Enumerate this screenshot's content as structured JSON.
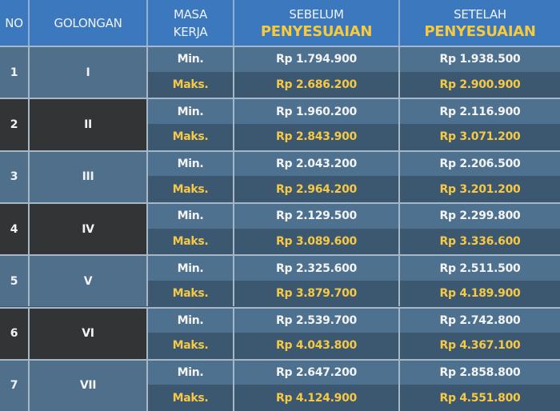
{
  "header": {
    "no": "NO",
    "golongan": "GOLONGAN",
    "masa_kerja": [
      "MASA",
      "KERJA"
    ],
    "sebelum": [
      "SEBELUM",
      "PENYESUAIAN"
    ],
    "setelah": [
      "SETELAH",
      "PENYESUAIAN"
    ]
  },
  "labels": {
    "min": "Min.",
    "maks": "Maks."
  },
  "colors": {
    "header": "#3b78be",
    "accent_yellow": "#f5c945",
    "min_row": "#4f7190",
    "maks_row": "#3c5770",
    "dark_cell": "#333436"
  },
  "rows": [
    {
      "no": "1",
      "golongan": "I",
      "sebelum_min": "Rp 1.794.900",
      "sebelum_maks": "Rp 2.686.200",
      "setelah_min": "Rp 1.938.500",
      "setelah_maks": "Rp 2.900.900"
    },
    {
      "no": "2",
      "golongan": "II",
      "sebelum_min": "Rp 1.960.200",
      "sebelum_maks": "Rp 2.843.900",
      "setelah_min": "Rp 2.116.900",
      "setelah_maks": "Rp 3.071.200"
    },
    {
      "no": "3",
      "golongan": "III",
      "sebelum_min": "Rp 2.043.200",
      "sebelum_maks": "Rp 2.964.200",
      "setelah_min": "Rp 2.206.500",
      "setelah_maks": "Rp 3.201.200"
    },
    {
      "no": "4",
      "golongan": "IV",
      "sebelum_min": "Rp 2.129.500",
      "sebelum_maks": "Rp 3.089.600",
      "setelah_min": "Rp 2.299.800",
      "setelah_maks": "Rp 3.336.600"
    },
    {
      "no": "5",
      "golongan": "V",
      "sebelum_min": "Rp 2.325.600",
      "sebelum_maks": "Rp 3.879.700",
      "setelah_min": "Rp 2.511.500",
      "setelah_maks": "Rp 4.189.900"
    },
    {
      "no": "6",
      "golongan": "VI",
      "sebelum_min": "Rp 2.539.700",
      "sebelum_maks": "Rp 4.043.800",
      "setelah_min": "Rp 2.742.800",
      "setelah_maks": "Rp 4.367.100"
    },
    {
      "no": "7",
      "golongan": "VII",
      "sebelum_min": "Rp 2.647.200",
      "sebelum_maks": "Rp 4.124.900",
      "setelah_min": "Rp 2.858.800",
      "setelah_maks": "Rp 4.551.800"
    }
  ]
}
